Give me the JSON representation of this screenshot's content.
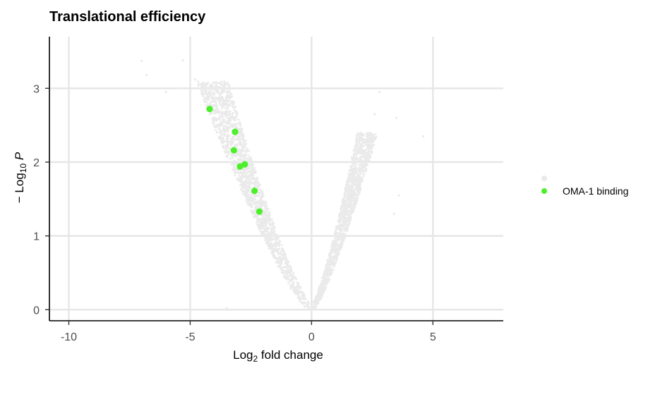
{
  "chart_data": {
    "type": "scatter",
    "title": "Translational efficiency",
    "xlabel": "Log2 fold change",
    "ylabel": "−Log10 P",
    "xlim": [
      -10.8,
      7.9
    ],
    "ylim": [
      -0.15,
      3.7
    ],
    "x_ticks": [
      -10,
      -5,
      0,
      5
    ],
    "y_ticks": [
      0,
      1,
      2,
      3
    ],
    "grid": true,
    "legend_position": "right",
    "background_series": {
      "name": "",
      "color": "#eaeaea",
      "description_note": "dense volcano cloud of thousands of points",
      "shape": "volcano",
      "left_arm": {
        "x_at_top": -4.1,
        "y_top": 3.1
      },
      "right_arm": {
        "x_at_top": 2.3,
        "y_top": 2.4
      },
      "outliers": [
        {
          "x": -7.0,
          "y": 3.37
        },
        {
          "x": -6.8,
          "y": 3.18
        },
        {
          "x": -5.3,
          "y": 3.38
        },
        {
          "x": -6.0,
          "y": 2.95
        },
        {
          "x": -5.5,
          "y": 3.0
        },
        {
          "x": -4.8,
          "y": 3.12
        },
        {
          "x": 2.8,
          "y": 2.95
        },
        {
          "x": 2.6,
          "y": 2.65
        },
        {
          "x": 3.5,
          "y": 2.6
        },
        {
          "x": 4.6,
          "y": 2.35
        },
        {
          "x": 3.4,
          "y": 1.3
        },
        {
          "x": 3.6,
          "y": 1.55
        },
        {
          "x": -3.5,
          "y": 0.02
        },
        {
          "x": -6.2,
          "y": 0.0
        }
      ]
    },
    "series": [
      {
        "name": "OMA-1 binding",
        "color": "#4cf02a",
        "points": [
          {
            "x": -4.2,
            "y": 2.72
          },
          {
            "x": -3.15,
            "y": 2.41
          },
          {
            "x": -3.2,
            "y": 2.16
          },
          {
            "x": -2.75,
            "y": 1.97
          },
          {
            "x": -2.95,
            "y": 1.94
          },
          {
            "x": -2.35,
            "y": 1.61
          },
          {
            "x": -2.15,
            "y": 1.33
          }
        ]
      }
    ],
    "legend": [
      {
        "label": "",
        "color": "#eaeaea"
      },
      {
        "label": "OMA-1 binding",
        "color": "#4cf02a"
      }
    ]
  }
}
